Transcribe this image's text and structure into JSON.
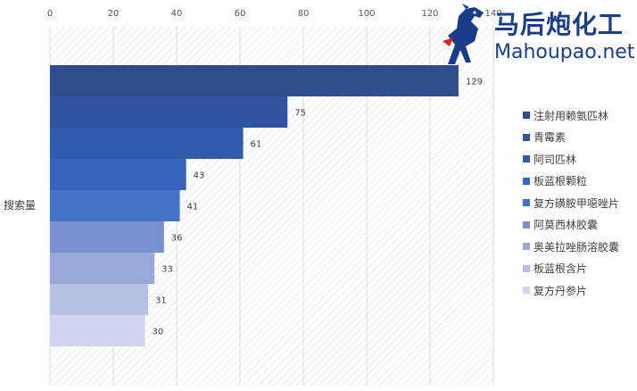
{
  "chart_data": {
    "type": "bar",
    "orientation": "horizontal",
    "ylabel": "搜索量",
    "xlim": [
      0,
      140
    ],
    "xticks": [
      0,
      20,
      40,
      60,
      80,
      100,
      120,
      140
    ],
    "grid": true,
    "legend_position": "right",
    "series": [
      {
        "name": "注射用赖氨匹林",
        "value": 129,
        "color": "#2e4d8e"
      },
      {
        "name": "青霉素",
        "value": 75,
        "color": "#2f54a0"
      },
      {
        "name": "阿司匹林",
        "value": 61,
        "color": "#3159ac"
      },
      {
        "name": "板蓝根颗粒",
        "value": 43,
        "color": "#3763bd"
      },
      {
        "name": "复方磺胺甲噁唑片",
        "value": 41,
        "color": "#4472c4"
      },
      {
        "name": "阿莫西林胶囊",
        "value": 36,
        "color": "#7990cf"
      },
      {
        "name": "奥美拉唑肠溶胶囊",
        "value": 33,
        "color": "#98a8d8"
      },
      {
        "name": "板蓝根含片",
        "value": 31,
        "color": "#b6c0e2"
      },
      {
        "name": "复方丹参片",
        "value": 30,
        "color": "#cfd5ee"
      }
    ]
  },
  "logo": {
    "cn_text": "马后炮化工",
    "en_text": "Mahoupao.net",
    "icon": "horse-icon"
  }
}
